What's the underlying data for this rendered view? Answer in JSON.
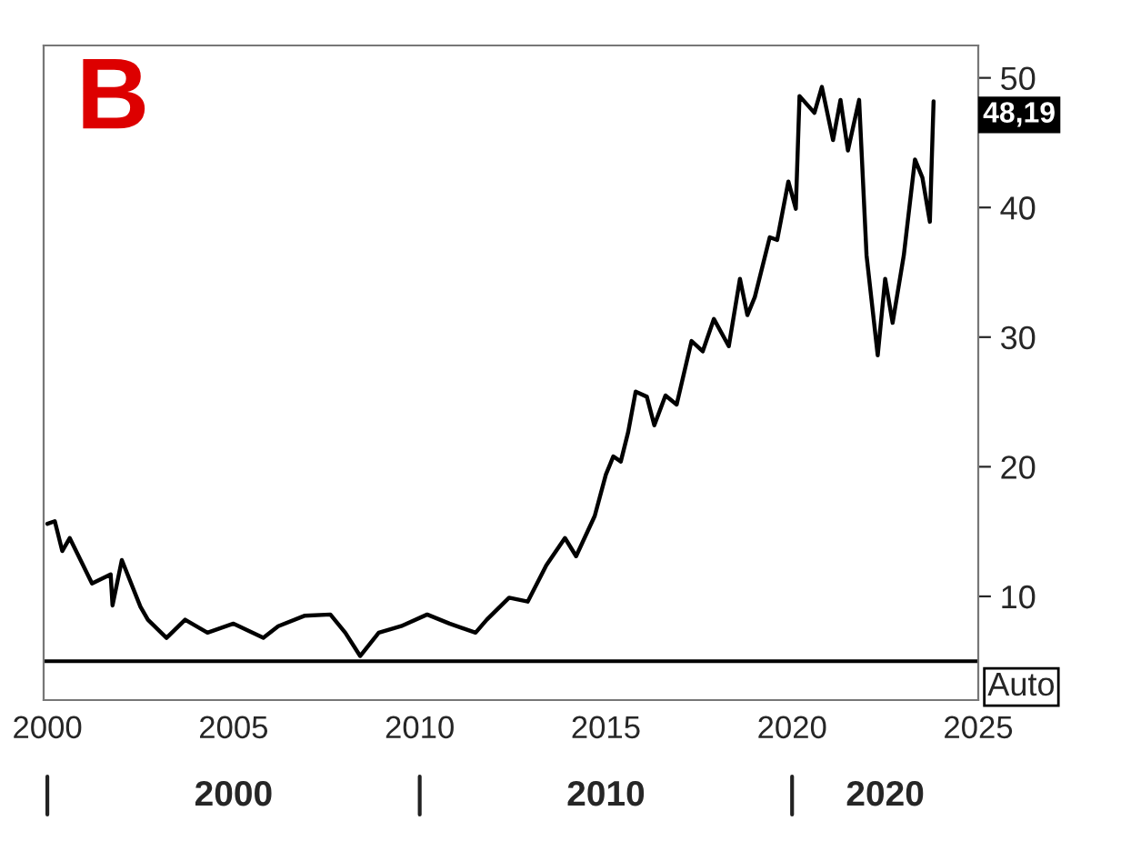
{
  "chart_data": {
    "type": "line",
    "color": "#000000",
    "x": [
      2000.0,
      2000.2,
      2000.4,
      2000.6,
      2001.2,
      2001.7,
      2001.75,
      2002.0,
      2002.5,
      2002.7,
      2003.2,
      2003.7,
      2004.3,
      2005.0,
      2005.8,
      2006.2,
      2006.9,
      2007.6,
      2008.0,
      2008.4,
      2008.9,
      2009.5,
      2010.2,
      2010.8,
      2011.5,
      2011.8,
      2012.4,
      2012.9,
      2013.4,
      2013.9,
      2014.2,
      2014.7,
      2015.0,
      2015.2,
      2015.4,
      2015.6,
      2015.8,
      2016.1,
      2016.3,
      2016.6,
      2016.9,
      2017.3,
      2017.6,
      2017.9,
      2018.3,
      2018.6,
      2018.8,
      2019.0,
      2019.4,
      2019.6,
      2019.9,
      2020.1,
      2020.2,
      2020.6,
      2020.8,
      2021.1,
      2021.3,
      2021.5,
      2021.8,
      2022.0,
      2022.3,
      2022.5,
      2022.7,
      2023.0,
      2023.3,
      2023.5,
      2023.7,
      2023.8
    ],
    "values": [
      15.6,
      15.8,
      13.5,
      14.5,
      11.0,
      11.7,
      9.3,
      12.8,
      9.2,
      8.2,
      6.8,
      8.2,
      7.2,
      7.9,
      6.8,
      7.7,
      8.5,
      8.6,
      7.2,
      5.4,
      7.2,
      7.7,
      8.6,
      7.9,
      7.2,
      8.2,
      9.9,
      9.6,
      12.4,
      14.5,
      13.1,
      16.2,
      19.4,
      20.8,
      20.4,
      22.7,
      25.8,
      25.4,
      23.2,
      25.5,
      24.8,
      29.7,
      28.9,
      31.4,
      29.3,
      34.5,
      31.7,
      33.1,
      37.7,
      37.5,
      42.0,
      39.9,
      48.6,
      47.3,
      49.3,
      45.2,
      48.3,
      44.4,
      48.3,
      36.3,
      28.6,
      34.5,
      31.1,
      36.3,
      43.7,
      42.3,
      38.9,
      48.19
    ],
    "xlim": [
      1999.9,
      2025
    ],
    "xticks": [
      2000,
      2005,
      2010,
      2015,
      2020,
      2025
    ],
    "ylim": [
      2,
      52.5
    ],
    "yticks": [
      10,
      20,
      30,
      40,
      50
    ],
    "ref_lines": [
      {
        "axis": "y",
        "value": 5,
        "label": null,
        "color": "#000000"
      }
    ],
    "annotations": [
      "B",
      "48,19",
      "Auto",
      "2000",
      "2010",
      "2020"
    ],
    "grid": false,
    "line_style": "solid",
    "marker": "none"
  }
}
